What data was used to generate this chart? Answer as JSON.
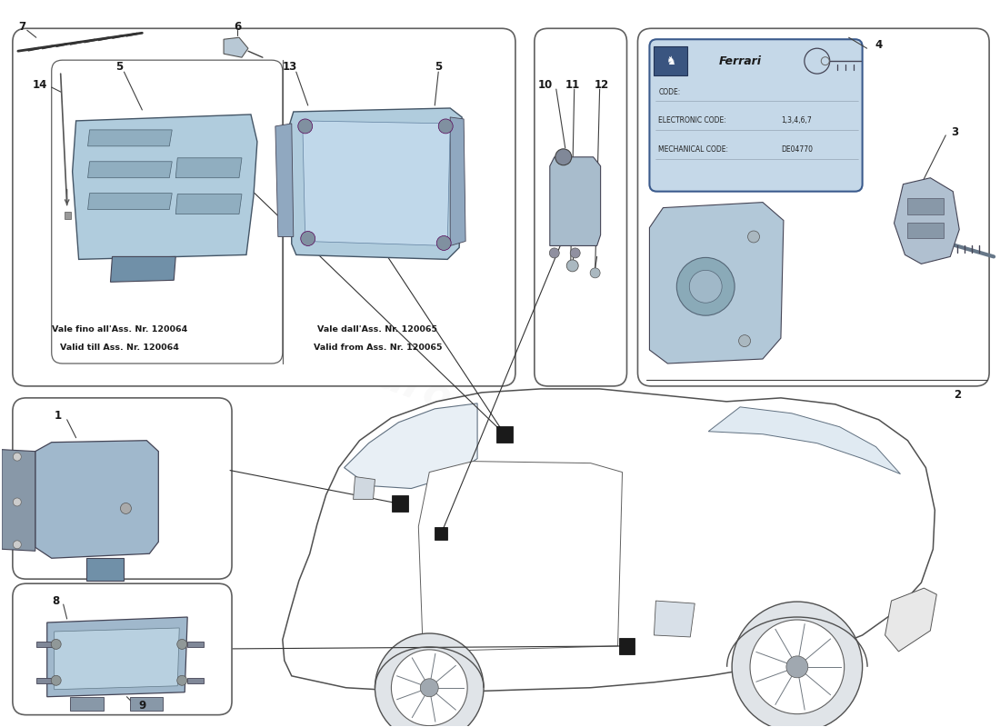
{
  "bg_color": "#ffffff",
  "part_color": "#b0ccdd",
  "part_color2": "#a8c4d8",
  "line_color": "#404040",
  "text_color": "#1a1a1a",
  "box_border": "#606060",
  "ferrari_blue": "#3a5a8c",
  "watermark_color": "#d8c840",
  "label_left1": "Vale fino all'Ass. Nr. 120064",
  "label_left2": "Valid till Ass. Nr. 120064",
  "label_right1": "Vale dall'Ass. Nr. 120065",
  "label_right2": "Valid from Ass. Nr. 120065",
  "code_label": "CODE:",
  "elec_label": "ELECTRONIC CODE:",
  "mech_label": "MECHANICAL CODE:",
  "elec_val": "1,3,4,6,7",
  "mech_val": "DE04770",
  "ferrari_text": "Ferrari"
}
